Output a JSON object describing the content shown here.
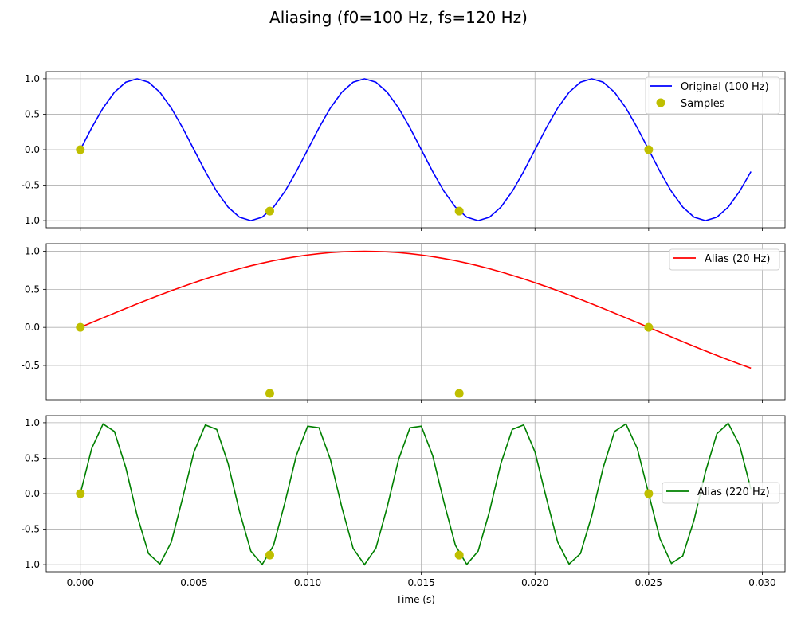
{
  "title": "Aliasing (f0=100 Hz, fs=120 Hz)",
  "xlabel": "Time (s)",
  "x_ticks": [
    "0.000",
    "0.005",
    "0.010",
    "0.015",
    "0.020",
    "0.025",
    "0.030"
  ],
  "colors": {
    "original": "#0000ff",
    "alias20": "#ff0000",
    "alias220": "#008000",
    "samples": "#bfbf00",
    "grid": "#b0b0b0"
  },
  "chart_data": [
    {
      "type": "line",
      "xlim": [
        -0.0015,
        0.031
      ],
      "ylim": [
        -1.1,
        1.1
      ],
      "y_ticks": [
        "-1.0",
        "-0.5",
        "0.0",
        "0.5",
        "1.0"
      ],
      "grid": true,
      "legend": "top-right",
      "series": [
        {
          "name": "Original (100 Hz)",
          "kind": "line",
          "freq": 100,
          "t_start": 0,
          "t_end": 0.0295,
          "t_step": 0.0005
        },
        {
          "name": "Samples",
          "kind": "scatter",
          "x": [
            0,
            0.008333,
            0.016667,
            0.025
          ],
          "y": [
            0,
            -0.866,
            -0.866,
            0
          ]
        }
      ]
    },
    {
      "type": "line",
      "xlim": [
        -0.0015,
        0.031
      ],
      "ylim": [
        -0.95,
        1.1
      ],
      "y_ticks": [
        "-0.5",
        "0.0",
        "0.5",
        "1.0"
      ],
      "grid": true,
      "legend": "top-right",
      "series": [
        {
          "name": "Alias (20 Hz)",
          "kind": "line",
          "freq": 20,
          "t_start": 0,
          "t_end": 0.0295,
          "t_step": 0.0005
        },
        {
          "name": "",
          "kind": "scatter",
          "x": [
            0,
            0.008333,
            0.016667,
            0.025
          ],
          "y": [
            0,
            -0.866,
            -0.866,
            0
          ]
        }
      ]
    },
    {
      "type": "line",
      "xlim": [
        -0.0015,
        0.031
      ],
      "ylim": [
        -1.1,
        1.1
      ],
      "y_ticks": [
        "-1.0",
        "-0.5",
        "0.0",
        "0.5",
        "1.0"
      ],
      "grid": true,
      "legend": "center-right",
      "series": [
        {
          "name": "Alias (220 Hz)",
          "kind": "line",
          "freq": 220,
          "t_start": 0,
          "t_end": 0.0295,
          "t_step": 0.0005
        },
        {
          "name": "",
          "kind": "scatter",
          "x": [
            0,
            0.008333,
            0.016667,
            0.025
          ],
          "y": [
            0,
            -0.866,
            -0.866,
            0
          ]
        }
      ]
    }
  ]
}
